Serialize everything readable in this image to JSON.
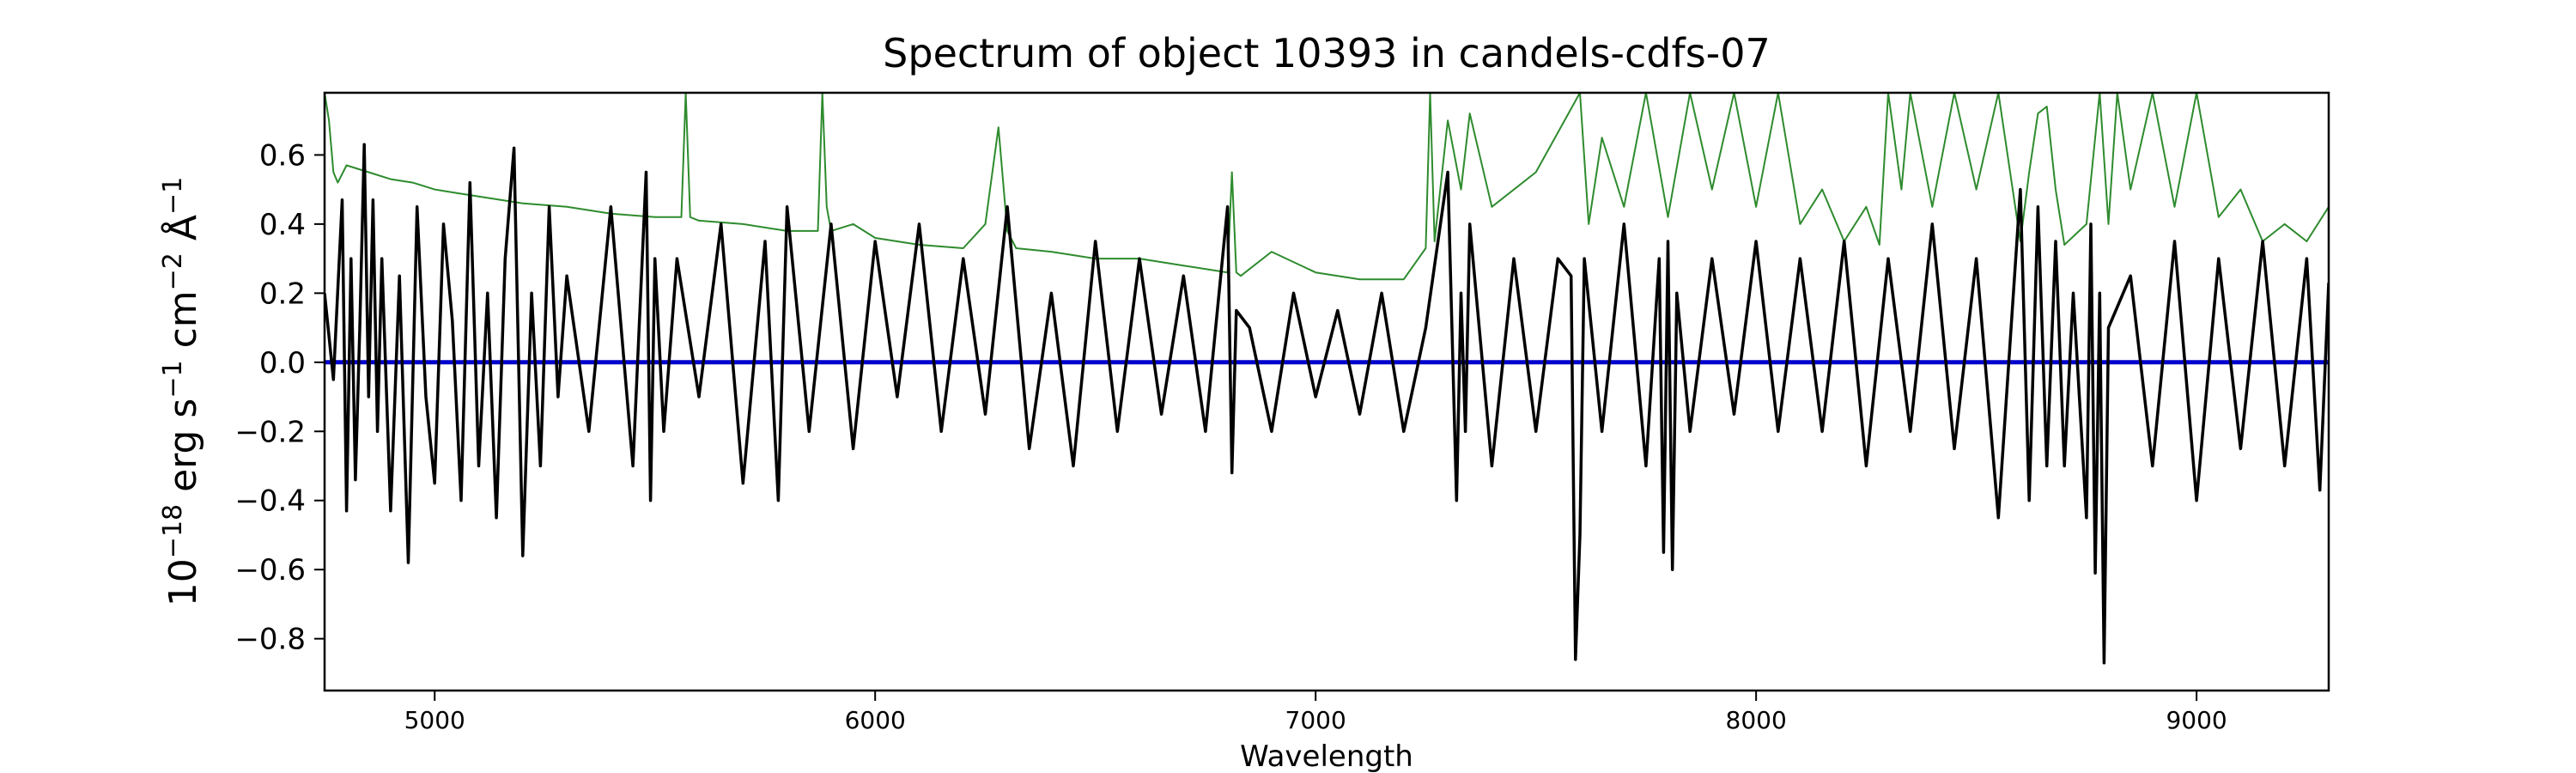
{
  "chart_data": {
    "type": "line",
    "title": "Spectrum of object 10393 in candels-cdfs-07",
    "xlabel": "Wavelength",
    "ylabel_main": "erg s",
    "ylabel_parts": [
      "10",
      "−18",
      " erg s",
      "−1",
      " cm",
      "−2",
      " Å",
      "−1"
    ],
    "xlim": [
      4750,
      9300
    ],
    "ylim": [
      -0.95,
      0.78
    ],
    "xticks": [
      5000,
      6000,
      7000,
      8000,
      9000
    ],
    "xtick_labels": [
      "5000",
      "6000",
      "7000",
      "8000",
      "9000"
    ],
    "yticks": [
      -0.8,
      -0.6,
      -0.4,
      -0.2,
      0.0,
      0.2,
      0.4,
      0.6
    ],
    "ytick_labels": [
      "−0.8",
      "−0.6",
      "−0.4",
      "−0.2",
      "0.0",
      "0.2",
      "0.4",
      "0.6"
    ],
    "grid": false,
    "legend": "none",
    "series": [
      {
        "role": "noise",
        "color": "#2e8b2e",
        "x": [
          4750,
          4760,
          4770,
          4780,
          4800,
          4850,
          4900,
          4950,
          5000,
          5050,
          5100,
          5150,
          5200,
          5300,
          5400,
          5500,
          5560,
          5570,
          5580,
          5600,
          5700,
          5800,
          5870,
          5880,
          5890,
          5900,
          5950,
          6000,
          6100,
          6200,
          6250,
          6280,
          6300,
          6320,
          6400,
          6500,
          6600,
          6700,
          6800,
          6810,
          6820,
          6830,
          6900,
          7000,
          7100,
          7200,
          7250,
          7260,
          7270,
          7300,
          7330,
          7350,
          7400,
          7500,
          7600,
          7620,
          7650,
          7700,
          7750,
          7800,
          7850,
          7900,
          7950,
          8000,
          8050,
          8100,
          8150,
          8200,
          8250,
          8280,
          8300,
          8330,
          8350,
          8400,
          8450,
          8500,
          8550,
          8600,
          8620,
          8640,
          8660,
          8680,
          8700,
          8750,
          8780,
          8800,
          8820,
          8850,
          8900,
          8950,
          9000,
          9050,
          9100,
          9150,
          9200,
          9250,
          9300
        ],
        "y": [
          0.78,
          0.7,
          0.55,
          0.52,
          0.57,
          0.55,
          0.53,
          0.52,
          0.5,
          0.49,
          0.48,
          0.47,
          0.46,
          0.45,
          0.43,
          0.42,
          0.42,
          0.78,
          0.42,
          0.41,
          0.4,
          0.38,
          0.38,
          0.78,
          0.45,
          0.38,
          0.4,
          0.36,
          0.34,
          0.33,
          0.4,
          0.68,
          0.38,
          0.33,
          0.32,
          0.3,
          0.3,
          0.28,
          0.26,
          0.55,
          0.26,
          0.25,
          0.32,
          0.26,
          0.24,
          0.24,
          0.33,
          0.78,
          0.35,
          0.7,
          0.5,
          0.72,
          0.45,
          0.55,
          0.78,
          0.4,
          0.65,
          0.45,
          0.78,
          0.42,
          0.78,
          0.5,
          0.78,
          0.45,
          0.78,
          0.4,
          0.5,
          0.35,
          0.45,
          0.34,
          0.78,
          0.5,
          0.78,
          0.45,
          0.78,
          0.5,
          0.78,
          0.35,
          0.55,
          0.72,
          0.74,
          0.5,
          0.34,
          0.4,
          0.78,
          0.4,
          0.78,
          0.5,
          0.78,
          0.45,
          0.78,
          0.42,
          0.5,
          0.35,
          0.4,
          0.35,
          0.45
        ]
      },
      {
        "role": "model",
        "color": "#0000cc",
        "x": [
          4750,
          9300
        ],
        "y": [
          0.0,
          0.0
        ]
      },
      {
        "role": "flux",
        "color": "#000000",
        "x": [
          4750,
          4770,
          4790,
          4800,
          4810,
          4820,
          4830,
          4840,
          4850,
          4860,
          4870,
          4880,
          4900,
          4920,
          4940,
          4960,
          4980,
          5000,
          5020,
          5040,
          5060,
          5080,
          5100,
          5120,
          5140,
          5160,
          5180,
          5200,
          5220,
          5240,
          5260,
          5280,
          5300,
          5350,
          5400,
          5450,
          5480,
          5490,
          5500,
          5520,
          5550,
          5600,
          5650,
          5700,
          5750,
          5780,
          5800,
          5850,
          5900,
          5950,
          6000,
          6050,
          6100,
          6150,
          6200,
          6250,
          6300,
          6350,
          6400,
          6450,
          6500,
          6550,
          6600,
          6650,
          6700,
          6750,
          6800,
          6810,
          6820,
          6850,
          6900,
          6950,
          7000,
          7050,
          7100,
          7150,
          7200,
          7250,
          7300,
          7320,
          7330,
          7340,
          7350,
          7400,
          7450,
          7500,
          7550,
          7580,
          7590,
          7600,
          7610,
          7650,
          7700,
          7750,
          7780,
          7790,
          7800,
          7810,
          7820,
          7850,
          7900,
          7950,
          8000,
          8050,
          8100,
          8150,
          8200,
          8250,
          8300,
          8350,
          8400,
          8450,
          8500,
          8550,
          8600,
          8620,
          8640,
          8660,
          8680,
          8700,
          8720,
          8750,
          8760,
          8770,
          8780,
          8790,
          8800,
          8850,
          8900,
          8950,
          9000,
          9050,
          9100,
          9150,
          9200,
          9250,
          9280,
          9300
        ],
        "y": [
          0.2,
          -0.05,
          0.47,
          -0.43,
          0.3,
          -0.34,
          0.1,
          0.63,
          -0.1,
          0.47,
          -0.2,
          0.3,
          -0.43,
          0.25,
          -0.58,
          0.45,
          -0.1,
          -0.35,
          0.4,
          0.12,
          -0.4,
          0.52,
          -0.3,
          0.2,
          -0.45,
          0.3,
          0.62,
          -0.56,
          0.2,
          -0.3,
          0.45,
          -0.1,
          0.25,
          -0.2,
          0.45,
          -0.3,
          0.55,
          -0.4,
          0.3,
          -0.2,
          0.3,
          -0.1,
          0.4,
          -0.35,
          0.35,
          -0.4,
          0.45,
          -0.2,
          0.4,
          -0.25,
          0.35,
          -0.1,
          0.4,
          -0.2,
          0.3,
          -0.15,
          0.45,
          -0.25,
          0.2,
          -0.3,
          0.35,
          -0.2,
          0.3,
          -0.15,
          0.25,
          -0.2,
          0.45,
          -0.32,
          0.15,
          0.1,
          -0.2,
          0.2,
          -0.1,
          0.15,
          -0.15,
          0.2,
          -0.2,
          0.1,
          0.55,
          -0.4,
          0.2,
          -0.2,
          0.4,
          -0.3,
          0.3,
          -0.2,
          0.3,
          0.25,
          -0.86,
          -0.5,
          0.3,
          -0.2,
          0.4,
          -0.3,
          0.3,
          -0.55,
          0.35,
          -0.6,
          0.2,
          -0.2,
          0.3,
          -0.15,
          0.35,
          -0.2,
          0.3,
          -0.2,
          0.35,
          -0.3,
          0.3,
          -0.2,
          0.4,
          -0.25,
          0.3,
          -0.45,
          0.5,
          -0.4,
          0.45,
          -0.3,
          0.35,
          -0.3,
          0.2,
          -0.45,
          0.4,
          -0.61,
          0.2,
          -0.87,
          0.1,
          0.25,
          -0.3,
          0.35,
          -0.4,
          0.3,
          -0.25,
          0.35,
          -0.3,
          0.3,
          -0.37,
          0.23
        ]
      }
    ]
  }
}
